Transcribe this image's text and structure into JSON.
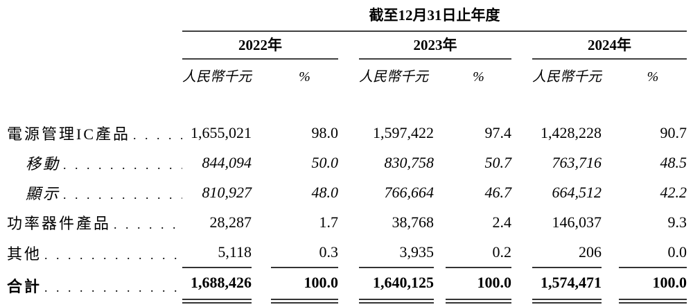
{
  "page": {
    "background": "#ffffff",
    "text_color": "#000000",
    "rule_color": "#404040"
  },
  "table": {
    "title": "截至12月31日止年度",
    "years": [
      "2022年",
      "2023年",
      "2024年"
    ],
    "subheaders": {
      "amount": "人民幣千元",
      "percent": "%"
    },
    "rows": [
      {
        "label": "電源管理IC產品",
        "leader": ". . . . .",
        "values": [
          "1,655,021",
          "98.0",
          "1,597,422",
          "97.4",
          "1,428,228",
          "90.7"
        ]
      },
      {
        "label": "移動",
        "leader": ". . . . . . . . . . . .",
        "values": [
          "844,094",
          "50.0",
          "830,758",
          "50.7",
          "763,716",
          "48.5"
        ]
      },
      {
        "label": "顯示",
        "leader": ". . . . . . . . . . . .",
        "values": [
          "810,927",
          "48.0",
          "766,664",
          "46.7",
          "664,512",
          "42.2"
        ]
      },
      {
        "label": "功率器件產品",
        "leader": ". . . . . . .",
        "values": [
          "28,287",
          "1.7",
          "38,768",
          "2.4",
          "146,037",
          "9.3"
        ]
      },
      {
        "label": "其他",
        "leader": ". . . . . . . . . . . . . .",
        "values": [
          "5,118",
          "0.3",
          "3,935",
          "0.2",
          "206",
          "0.0"
        ]
      },
      {
        "label": "合計",
        "leader": ". . . . . . . . . . . . . .",
        "values": [
          "1,688,426",
          "100.0",
          "1,640,125",
          "100.0",
          "1,574,471",
          "100.0"
        ]
      }
    ]
  }
}
